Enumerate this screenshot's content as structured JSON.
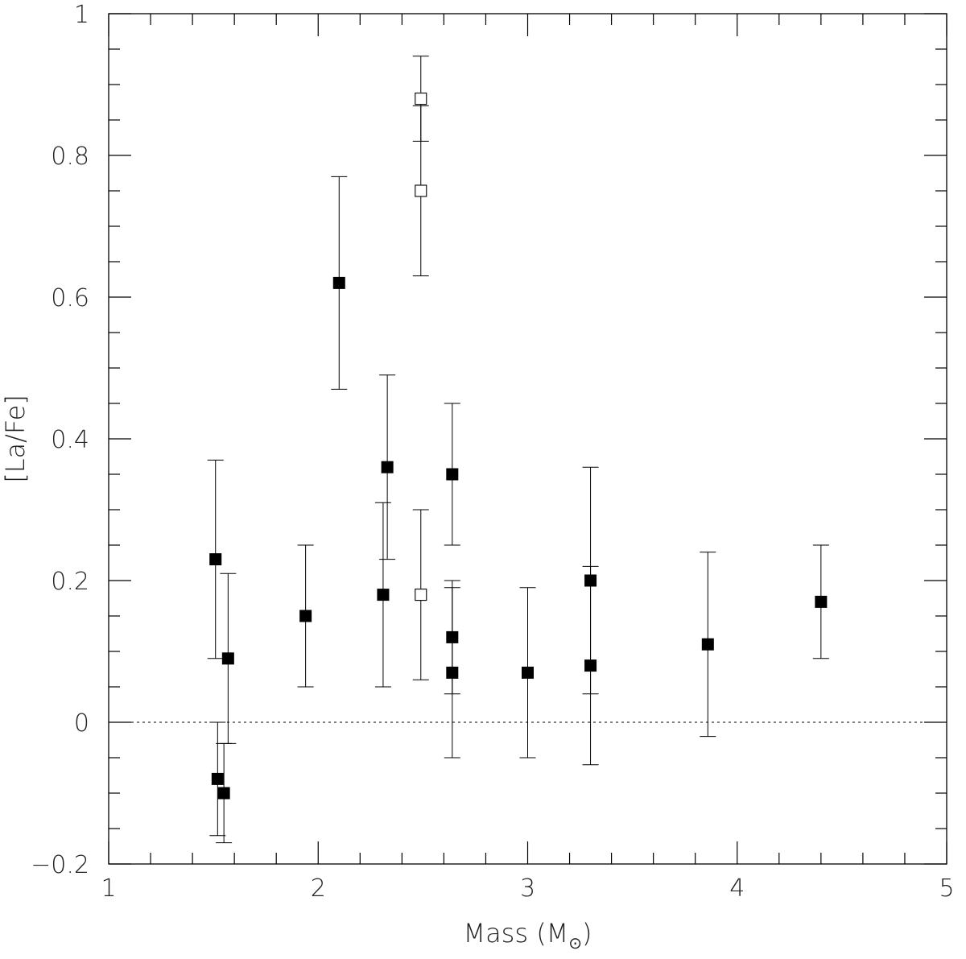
{
  "chart_data": {
    "type": "scatter",
    "xlabel": "Mass (M",
    "xlabel_sub": "⊙",
    "xlabel_close": ")",
    "ylabel": "[La/Fe]",
    "xlim": [
      1,
      5
    ],
    "ylim": [
      -0.2,
      1
    ],
    "xticks": [
      1,
      2,
      3,
      4,
      5
    ],
    "xtick_labels": [
      "1",
      "2",
      "3",
      "4",
      "5"
    ],
    "yticks": [
      -0.2,
      0,
      0.2,
      0.4,
      0.6,
      0.8,
      1
    ],
    "ytick_labels": [
      "−0.2",
      "0",
      "0.2",
      "0.4",
      "0.6",
      "0.8",
      "1"
    ],
    "reference_line_y": 0,
    "grid": false,
    "series": [
      {
        "marker": "filled-square",
        "points": [
          {
            "x": 1.51,
            "y": 0.23,
            "err": 0.14
          },
          {
            "x": 1.52,
            "y": -0.08,
            "err": 0.08
          },
          {
            "x": 1.55,
            "y": -0.1,
            "err": 0.07
          },
          {
            "x": 1.57,
            "y": 0.09,
            "err": 0.12
          },
          {
            "x": 1.94,
            "y": 0.15,
            "err": 0.1
          },
          {
            "x": 2.1,
            "y": 0.62,
            "err": 0.15
          },
          {
            "x": 2.31,
            "y": 0.18,
            "err": 0.13
          },
          {
            "x": 2.33,
            "y": 0.36,
            "err": 0.13
          },
          {
            "x": 2.64,
            "y": 0.35,
            "err": 0.1
          },
          {
            "x": 2.64,
            "y": 0.12,
            "err": 0.08
          },
          {
            "x": 2.64,
            "y": 0.07,
            "err": 0.12
          },
          {
            "x": 3.0,
            "y": 0.07,
            "err": 0.12
          },
          {
            "x": 3.3,
            "y": 0.2,
            "err": 0.16
          },
          {
            "x": 3.3,
            "y": 0.08,
            "err": 0.14
          },
          {
            "x": 3.86,
            "y": 0.11,
            "err": 0.13
          },
          {
            "x": 4.4,
            "y": 0.17,
            "err": 0.08
          }
        ]
      },
      {
        "marker": "open-square",
        "points": [
          {
            "x": 2.49,
            "y": 0.88,
            "err": 0.06
          },
          {
            "x": 2.49,
            "y": 0.75,
            "err": 0.12
          },
          {
            "x": 2.49,
            "y": 0.18,
            "err": 0.12
          }
        ]
      }
    ]
  }
}
